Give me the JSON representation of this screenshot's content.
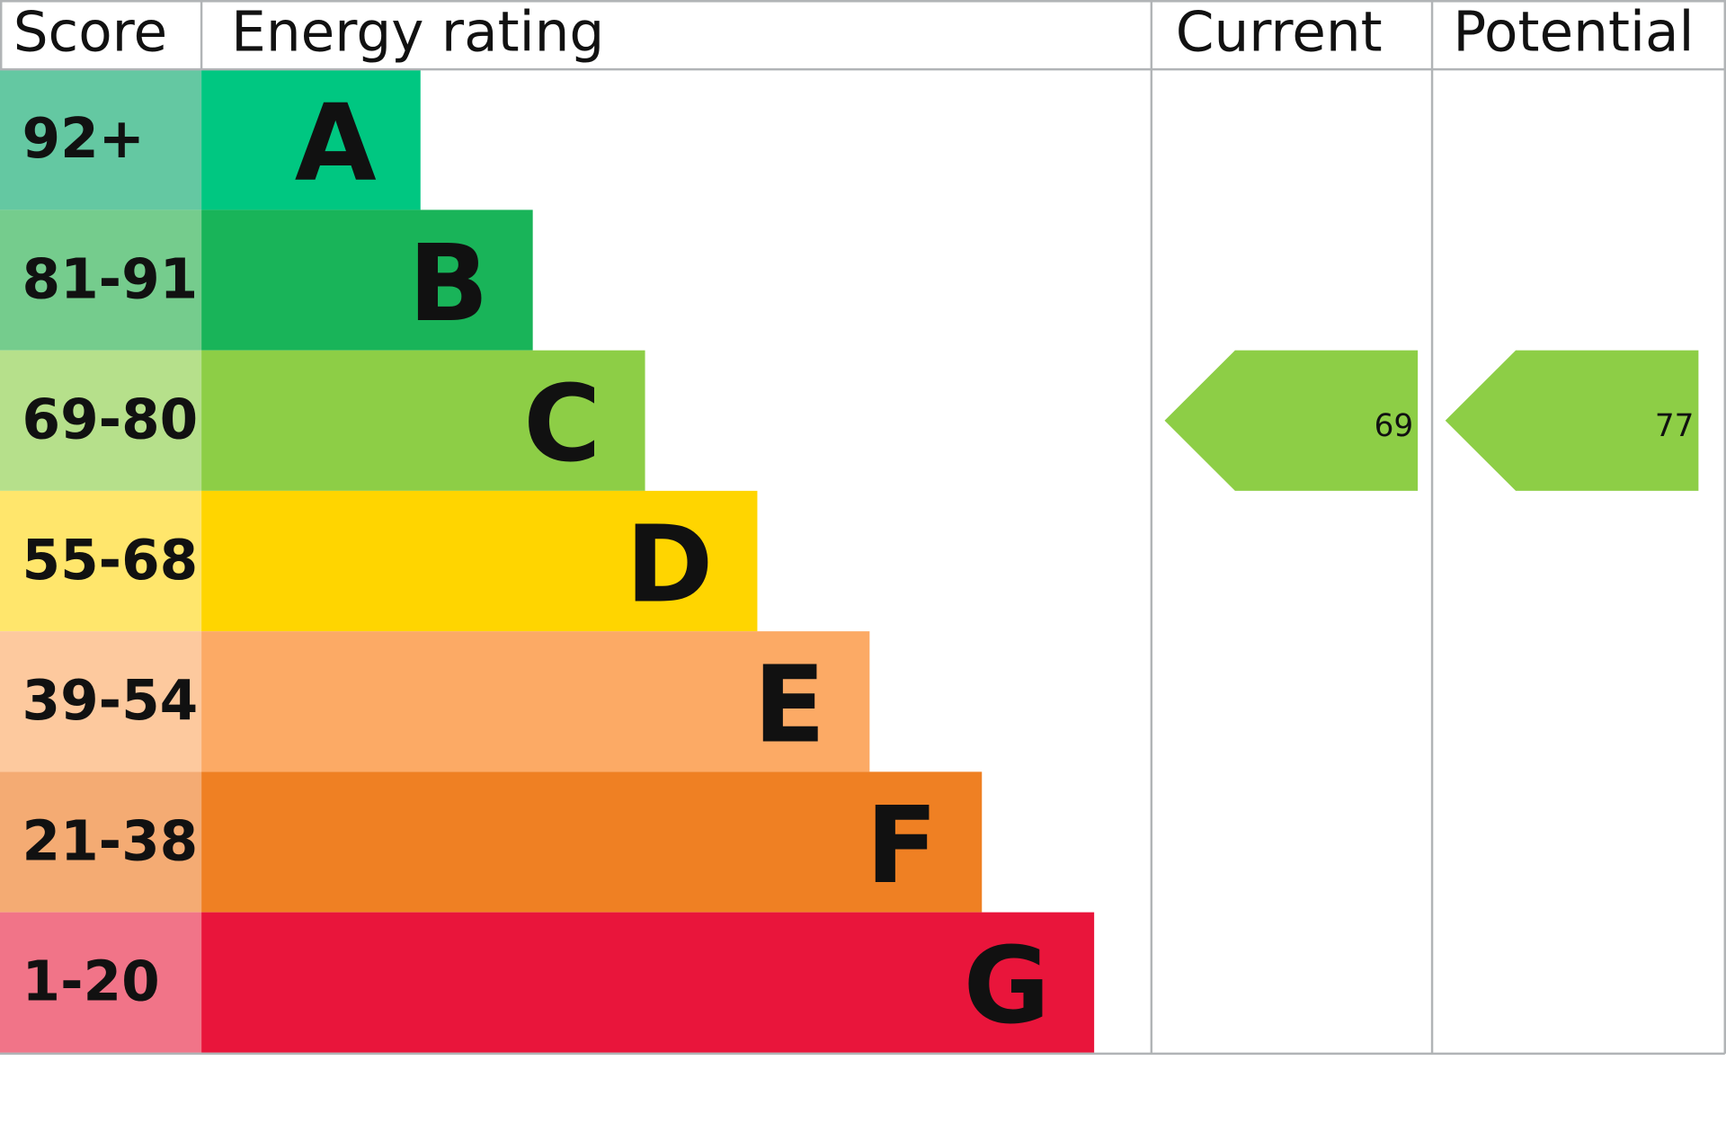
{
  "chart_data": {
    "type": "table",
    "headers": {
      "score": "Score",
      "rating": "Energy rating",
      "current": "Current",
      "potential": "Potential"
    },
    "bands": [
      {
        "letter": "A",
        "range": "92+",
        "color": "#00c781",
        "light": "#64c8a2"
      },
      {
        "letter": "B",
        "range": "81-91",
        "color": "#19b459",
        "light": "#75cc8d"
      },
      {
        "letter": "C",
        "range": "69-80",
        "color": "#8dce46",
        "light": "#b6e08b"
      },
      {
        "letter": "D",
        "range": "55-68",
        "color": "#ffd500",
        "light": "#ffe66c"
      },
      {
        "letter": "E",
        "range": "39-54",
        "color": "#fcaa65",
        "light": "#fdc99e"
      },
      {
        "letter": "F",
        "range": "21-38",
        "color": "#ef8023",
        "light": "#f4ab73"
      },
      {
        "letter": "G",
        "range": "1-20",
        "color": "#e9153b",
        "light": "#f17488"
      }
    ],
    "current": {
      "value": "69",
      "band": "C",
      "color": "#8dce46"
    },
    "potential": {
      "value": "77",
      "band": "C",
      "color": "#8dce46"
    },
    "grid_color": "#b1b4b6"
  }
}
